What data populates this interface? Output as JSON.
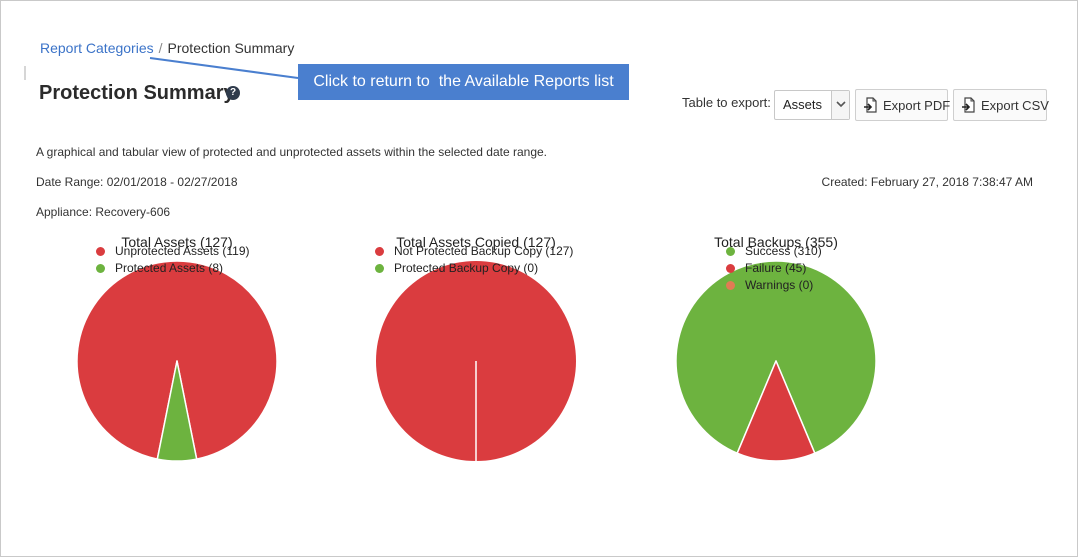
{
  "breadcrumb": {
    "parent": "Report Categories",
    "separator": "/",
    "current": "Protection Summary"
  },
  "callout": {
    "text": "Click to return to  the Available Reports list"
  },
  "header": {
    "title": "Protection Summary",
    "help_icon": "question-circle-icon"
  },
  "export": {
    "label": "Table to export:",
    "selected": "Assets",
    "pdf_label": "Export PDF",
    "csv_label": "Export CSV",
    "icon": "export-file-icon"
  },
  "info": {
    "description": "A graphical and tabular view of protected and unprotected assets within the selected date range.",
    "date_range": "Date Range: 02/01/2018 - 02/27/2018",
    "created": "Created: February 27, 2018 7:38:47 AM",
    "appliance": "Appliance: Recovery-606"
  },
  "colors": {
    "red": "#da3c3f",
    "green": "#6db33f",
    "orange": "#e07b54",
    "accent": "#4a7fcf",
    "link": "#3b73c8"
  },
  "chart_data": [
    {
      "type": "pie",
      "title": "Total Assets (127)",
      "slices": [
        {
          "label": "Unprotected Assets (119)",
          "value": 119,
          "color": "#da3c3f"
        },
        {
          "label": "Protected Assets (8)",
          "value": 8,
          "color": "#6db33f"
        }
      ]
    },
    {
      "type": "pie",
      "title": "Total Assets Copied (127)",
      "slices": [
        {
          "label": "Not Protected Backup Copy (127)",
          "value": 127,
          "color": "#da3c3f"
        },
        {
          "label": "Protected Backup Copy (0)",
          "value": 0,
          "color": "#6db33f"
        }
      ]
    },
    {
      "type": "pie",
      "title": "Total Backups (355)",
      "slices": [
        {
          "label": "Success (310)",
          "value": 310,
          "color": "#6db33f"
        },
        {
          "label": "Failure (45)",
          "value": 45,
          "color": "#da3c3f"
        },
        {
          "label": "Warnings (0)",
          "value": 0,
          "color": "#e07b54"
        }
      ]
    }
  ]
}
